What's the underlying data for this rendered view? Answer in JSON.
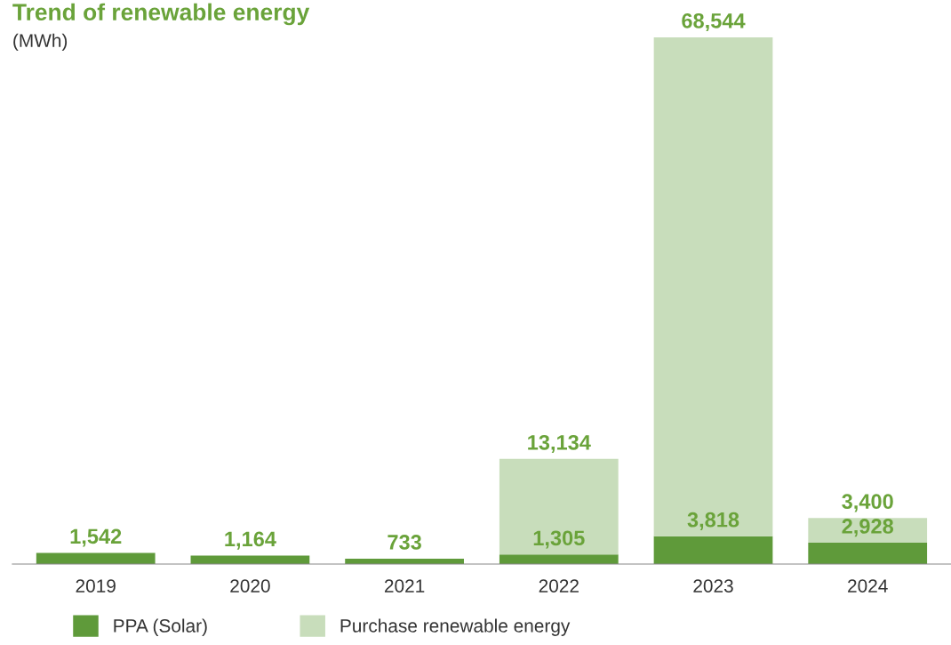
{
  "chart_data": {
    "type": "bar",
    "title": "Trend of renewable energy",
    "subtitle": "(MWh)",
    "stacked": true,
    "legend": "bottom left",
    "grid": false,
    "categories": [
      "2019",
      "2020",
      "2021",
      "2022",
      "2023",
      "2024"
    ],
    "series": [
      {
        "name": "PPA (Solar)",
        "color": "#5f9a3a",
        "values": [
          1542,
          1164,
          733,
          1305,
          3818,
          2928
        ],
        "value_labels": [
          "1,542",
          "1,164",
          "733",
          "1,305",
          "3,818",
          "2,928"
        ]
      },
      {
        "name": "Purchase renewable energy",
        "color": "#c8ddbb",
        "values": [
          null,
          null,
          null,
          13134,
          68544,
          3400
        ],
        "value_labels": [
          null,
          null,
          null,
          "13,134",
          "68,544",
          "3,400"
        ]
      }
    ]
  }
}
